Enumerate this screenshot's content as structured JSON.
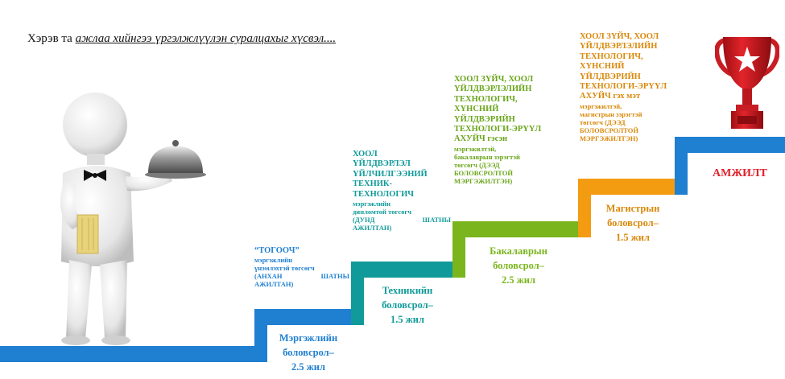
{
  "headline": {
    "prefix": "Хэрэв та ",
    "emphasis": "ажлаа хийнгээ үргэлжлүүлэн суралцахыг хүсвэл...."
  },
  "steps": [
    {
      "id": "cook",
      "color": "#1f7fd1",
      "title": "“ТОГООЧ”",
      "lines": [
        "мэргэжлийн",
        "үнэмлэхтэй төгсөгч",
        "(АНХАН ШАТНЫ",
        "АЖИЛТАН)"
      ],
      "education": [
        "Мэргэжлийн",
        "боловсрол–",
        "2.5 жил"
      ]
    },
    {
      "id": "technician",
      "color": "#119a9a",
      "title_lines": [
        "ХООЛ",
        "ҮЙЛДВЭРЛЭЛ",
        "ҮЙЛЧИЛГЭЭНИЙ",
        "ТЕХНИК-",
        "ТЕХНОЛОГИЧ"
      ],
      "lines": [
        "мэргэжлийн",
        "дипломтой төгсөгч",
        "(ДУНД ШАТНЫ",
        "АЖИЛТАН)"
      ],
      "education": [
        "Техникийн",
        "боловсрол–",
        "1.5 жил"
      ]
    },
    {
      "id": "bachelor",
      "color": "#7ab51d",
      "title_lines": [
        "ХООЛ ЗҮЙЧ, ХООЛ",
        "ҮЙЛДВЭРЛЭЛИЙН",
        "ТЕХНОЛОГИЧ,",
        "ХҮНСНИЙ",
        "ҮЙЛДВЭРИЙН",
        "ТЕХНОЛОГИ-ЭРҮҮЛ",
        "АХУЙЧ гэсэн"
      ],
      "lines": [
        "мэргэжилтэй,",
        "бакалаврын зэрэгтэй",
        "төгсөгч (ДЭЭД",
        "БОЛОВСРОЛТОЙ",
        "МЭРГЭЖИЛТЭН)"
      ],
      "education": [
        "Бакалаврын",
        "боловсрол–",
        "2.5 жил"
      ]
    },
    {
      "id": "master",
      "color": "#f39c12",
      "title_lines": [
        "ХООЛ ЗҮЙЧ, ХООЛ",
        "ҮЙЛДВЭРЛЭЛИЙН",
        "ТЕХНОЛОГИЧ,",
        "ХҮНСНИЙ",
        "ҮЙЛДВЭРИЙН",
        "ТЕХНОЛОГИ-ЭРҮҮЛ",
        "АХУЙЧ гэх мэт"
      ],
      "lines": [
        "мэргэжилтэй,",
        "магистрын зэрэгтэй",
        "төгсөгч (ДЭЭД",
        "БОЛОВСРОЛТОЙ",
        "МЭРГЭЖИЛТЭН)"
      ],
      "education": [
        "Магистрын",
        "боловсрол–",
        "1.5 жил"
      ]
    }
  ],
  "success_label": "АМЖИЛТ",
  "top_step_color": "#1f7fd1",
  "icons": {
    "waiter": "waiter-figure-icon",
    "trophy": "trophy-star-icon"
  }
}
